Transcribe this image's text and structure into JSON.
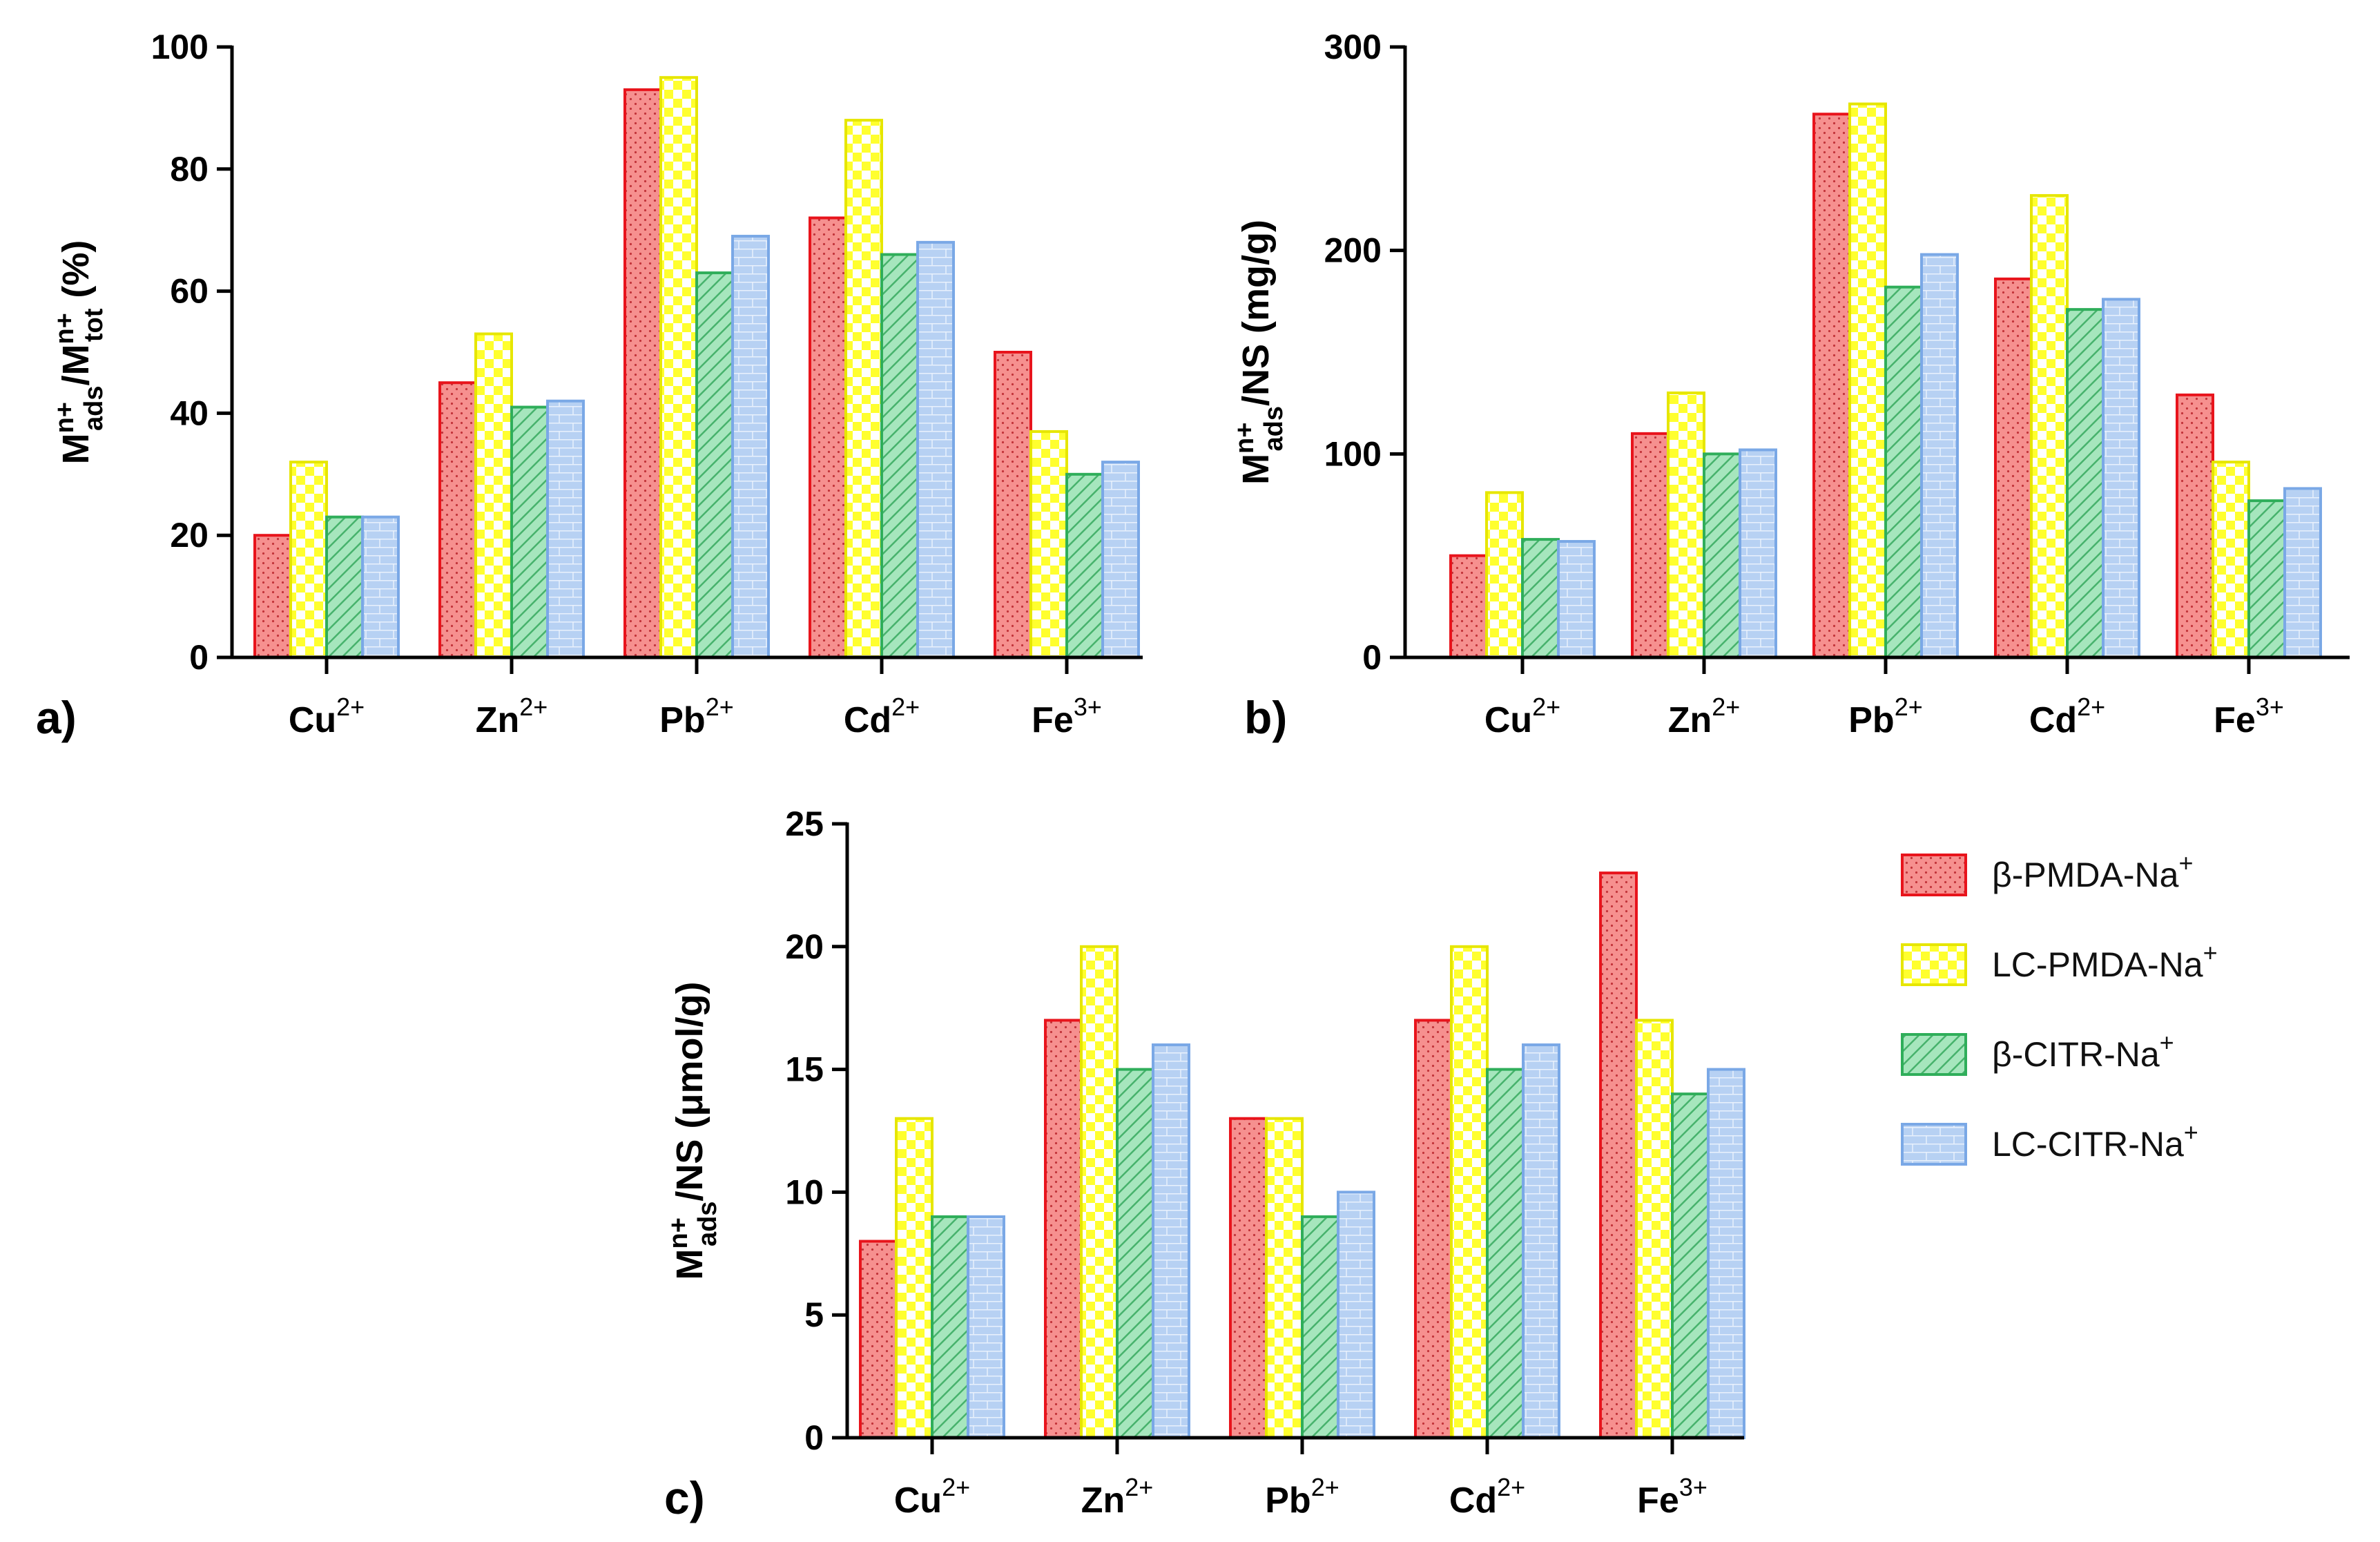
{
  "chart_data": [
    {
      "type": "bar",
      "panel": "a)",
      "categories": [
        {
          "base": "Cu",
          "charge": "2+"
        },
        {
          "base": "Zn",
          "charge": "2+"
        },
        {
          "base": "Pb",
          "charge": "2+"
        },
        {
          "base": "Cd",
          "charge": "2+"
        },
        {
          "base": "Fe",
          "charge": "3+"
        }
      ],
      "ylabel": {
        "parts": [
          {
            "t": "M",
            "s": ""
          },
          {
            "t": "n+",
            "s": "sup"
          },
          {
            "t": "ads",
            "s": "sub"
          },
          {
            "t": "/M",
            "s": ""
          },
          {
            "t": "n+",
            "s": "sup"
          },
          {
            "t": "tot",
            "s": "sub"
          },
          {
            "t": " (%)",
            "s": ""
          }
        ]
      },
      "ylim": [
        0,
        100
      ],
      "yticks": [
        0,
        20,
        40,
        60,
        80,
        100
      ],
      "series": [
        {
          "name": "β-PMDA-Na+",
          "values": [
            20,
            45,
            93,
            72,
            50
          ]
        },
        {
          "name": "LC-PMDA-Na+",
          "values": [
            32,
            53,
            95,
            88,
            37
          ]
        },
        {
          "name": "β-CITR-Na+",
          "values": [
            23,
            41,
            63,
            66,
            30
          ]
        },
        {
          "name": "LC-CITR-Na+",
          "values": [
            23,
            42,
            69,
            68,
            32
          ]
        }
      ]
    },
    {
      "type": "bar",
      "panel": "b)",
      "categories": [
        {
          "base": "Cu",
          "charge": "2+"
        },
        {
          "base": "Zn",
          "charge": "2+"
        },
        {
          "base": "Pb",
          "charge": "2+"
        },
        {
          "base": "Cd",
          "charge": "2+"
        },
        {
          "base": "Fe",
          "charge": "3+"
        }
      ],
      "ylabel": {
        "parts": [
          {
            "t": "M",
            "s": ""
          },
          {
            "t": "n+",
            "s": "sup"
          },
          {
            "t": "ads",
            "s": "sub"
          },
          {
            "t": "/NS (mg/g)",
            "s": ""
          }
        ]
      },
      "ylim": [
        0,
        300
      ],
      "yticks": [
        0,
        100,
        200,
        300
      ],
      "series": [
        {
          "name": "β-PMDA-Na+",
          "values": [
            50,
            110,
            267,
            186,
            129
          ]
        },
        {
          "name": "LC-PMDA-Na+",
          "values": [
            81,
            130,
            272,
            227,
            96
          ]
        },
        {
          "name": "β-CITR-Na+",
          "values": [
            58,
            100,
            182,
            171,
            77
          ]
        },
        {
          "name": "LC-CITR-Na+",
          "values": [
            57,
            102,
            198,
            176,
            83
          ]
        }
      ]
    },
    {
      "type": "bar",
      "panel": "c)",
      "categories": [
        {
          "base": "Cu",
          "charge": "2+"
        },
        {
          "base": "Zn",
          "charge": "2+"
        },
        {
          "base": "Pb",
          "charge": "2+"
        },
        {
          "base": "Cd",
          "charge": "2+"
        },
        {
          "base": "Fe",
          "charge": "3+"
        }
      ],
      "ylabel": {
        "parts": [
          {
            "t": "M",
            "s": ""
          },
          {
            "t": "n+",
            "s": "sup"
          },
          {
            "t": "ads",
            "s": "sub"
          },
          {
            "t": "/NS (μmol/g)",
            "s": ""
          }
        ]
      },
      "ylim": [
        0,
        25
      ],
      "yticks": [
        0,
        5,
        10,
        15,
        20,
        25
      ],
      "series": [
        {
          "name": "β-PMDA-Na+",
          "values": [
            8,
            17,
            13,
            17,
            23
          ]
        },
        {
          "name": "LC-PMDA-Na+",
          "values": [
            13,
            20,
            13,
            20,
            17
          ]
        },
        {
          "name": "β-CITR-Na+",
          "values": [
            9,
            15,
            9,
            15,
            14
          ]
        },
        {
          "name": "LC-CITR-Na+",
          "values": [
            9,
            16,
            10,
            16,
            15
          ]
        }
      ]
    }
  ],
  "legend": {
    "placement": "right of panel c",
    "items": [
      {
        "prefix": "β",
        "text": "-PMDA-Na",
        "sup": "+",
        "pattern": "dots",
        "fill": "#f58f8f",
        "stroke": "#e8141c"
      },
      {
        "prefix": "",
        "text": "LC-PMDA-Na",
        "sup": "+",
        "pattern": "checker",
        "fill": "#ffff33",
        "stroke": "#e6e600"
      },
      {
        "prefix": "β",
        "text": "-CITR-Na",
        "sup": "+",
        "pattern": "diagonal",
        "fill": "#9ee0b4",
        "stroke": "#2fae5a"
      },
      {
        "prefix": "",
        "text": "LC-CITR-Na",
        "sup": "+",
        "pattern": "bricks",
        "fill": "#b8d2f2",
        "stroke": "#7aa8e6"
      }
    ]
  }
}
